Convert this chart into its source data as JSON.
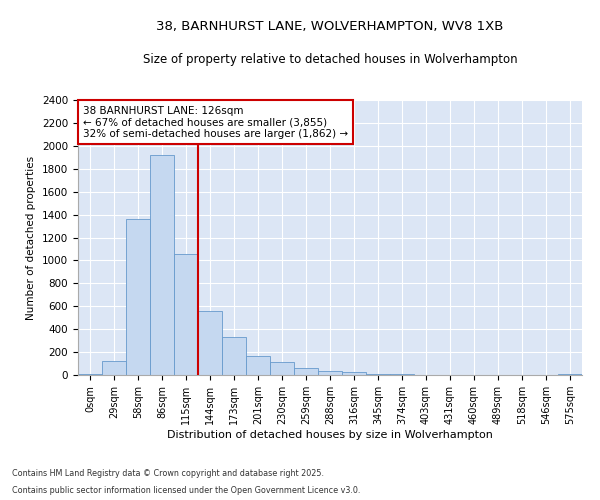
{
  "title_line1": "38, BARNHURST LANE, WOLVERHAMPTON, WV8 1XB",
  "title_line2": "Size of property relative to detached houses in Wolverhampton",
  "xlabel": "Distribution of detached houses by size in Wolverhampton",
  "ylabel": "Number of detached properties",
  "annotation_title": "38 BARNHURST LANE: 126sqm",
  "annotation_line2": "← 67% of detached houses are smaller (3,855)",
  "annotation_line3": "32% of semi-detached houses are larger (1,862) →",
  "footer_line1": "Contains HM Land Registry data © Crown copyright and database right 2025.",
  "footer_line2": "Contains public sector information licensed under the Open Government Licence v3.0.",
  "bar_color": "#c5d8f0",
  "bar_edge_color": "#6699cc",
  "background_color": "#dce6f5",
  "grid_color": "#ffffff",
  "annotation_box_color": "#cc0000",
  "vline_color": "#cc0000",
  "categories": [
    "0sqm",
    "29sqm",
    "58sqm",
    "86sqm",
    "115sqm",
    "144sqm",
    "173sqm",
    "201sqm",
    "230sqm",
    "259sqm",
    "288sqm",
    "316sqm",
    "345sqm",
    "374sqm",
    "403sqm",
    "431sqm",
    "460sqm",
    "489sqm",
    "518sqm",
    "546sqm",
    "575sqm"
  ],
  "values": [
    10,
    125,
    1360,
    1920,
    1055,
    560,
    335,
    170,
    110,
    60,
    35,
    25,
    5,
    5,
    3,
    2,
    1,
    1,
    1,
    1,
    5
  ],
  "property_bin_index": 4,
  "ylim": [
    0,
    2400
  ],
  "yticks": [
    0,
    200,
    400,
    600,
    800,
    1000,
    1200,
    1400,
    1600,
    1800,
    2000,
    2200,
    2400
  ]
}
